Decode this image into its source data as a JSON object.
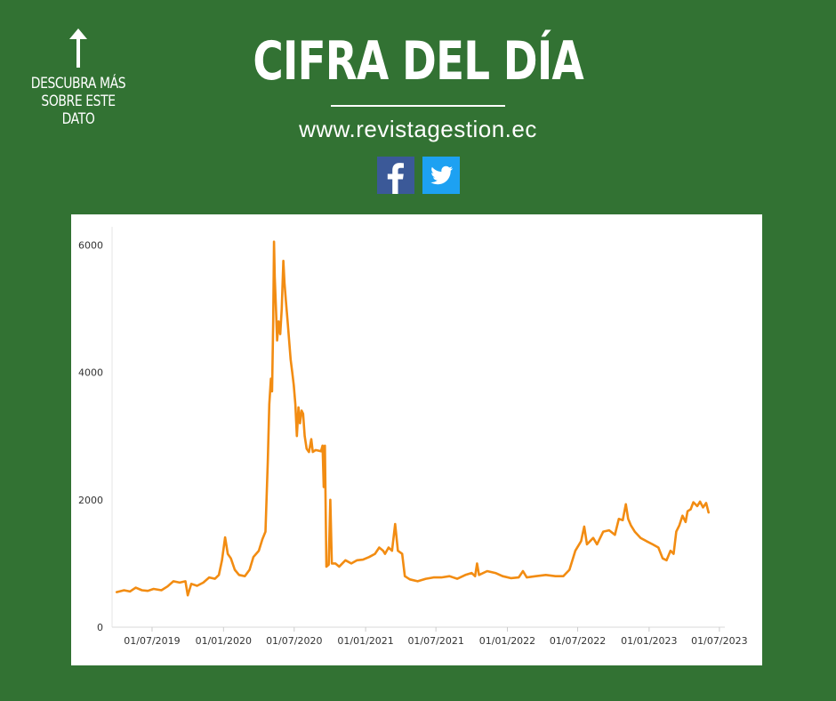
{
  "header": {
    "side_note": "DESCUBRA MÁS SOBRE ESTE DATO",
    "title": "CIFRA DEL DÍA",
    "url": "www.revistagestion.ec"
  },
  "icons": {
    "side_arrow": "arrow-up-icon",
    "facebook": "facebook-icon",
    "twitter": "twitter-icon"
  },
  "colors": {
    "background": "#327233",
    "line": "#F28C12",
    "facebook": "#3b5998",
    "twitter": "#1da1f2"
  },
  "chart_data": {
    "type": "line",
    "title": "",
    "xlabel": "",
    "ylabel": "",
    "ylim": [
      0,
      6200
    ],
    "xlim": [
      "2019-03-20",
      "2023-07-15"
    ],
    "yticks": [
      0,
      2000,
      4000,
      6000
    ],
    "xticks": [
      "01/07/2019",
      "01/01/2020",
      "01/07/2020",
      "01/01/2021",
      "01/07/2021",
      "01/01/2022",
      "01/07/2022",
      "01/01/2023",
      "01/07/2023"
    ],
    "grid": false,
    "legend": "none",
    "series": [
      {
        "points": [
          [
            "2019-04-01",
            550
          ],
          [
            "2019-04-20",
            580
          ],
          [
            "2019-05-05",
            560
          ],
          [
            "2019-05-20",
            620
          ],
          [
            "2019-06-05",
            580
          ],
          [
            "2019-06-20",
            570
          ],
          [
            "2019-07-05",
            600
          ],
          [
            "2019-07-25",
            580
          ],
          [
            "2019-08-10",
            640
          ],
          [
            "2019-08-25",
            720
          ],
          [
            "2019-09-10",
            700
          ],
          [
            "2019-09-25",
            720
          ],
          [
            "2019-10-01",
            500
          ],
          [
            "2019-10-10",
            680
          ],
          [
            "2019-10-25",
            650
          ],
          [
            "2019-11-10",
            700
          ],
          [
            "2019-11-25",
            780
          ],
          [
            "2019-12-10",
            760
          ],
          [
            "2019-12-20",
            820
          ],
          [
            "2019-12-28",
            1050
          ],
          [
            "2020-01-05",
            1410
          ],
          [
            "2020-01-12",
            1150
          ],
          [
            "2020-01-20",
            1080
          ],
          [
            "2020-01-30",
            900
          ],
          [
            "2020-02-10",
            820
          ],
          [
            "2020-02-25",
            800
          ],
          [
            "2020-03-08",
            900
          ],
          [
            "2020-03-18",
            1100
          ],
          [
            "2020-04-01",
            1200
          ],
          [
            "2020-04-10",
            1380
          ],
          [
            "2020-04-18",
            1500
          ],
          [
            "2020-04-24",
            2600
          ],
          [
            "2020-04-28",
            3500
          ],
          [
            "2020-05-02",
            3900
          ],
          [
            "2020-05-05",
            3700
          ],
          [
            "2020-05-08",
            4800
          ],
          [
            "2020-05-10",
            6050
          ],
          [
            "2020-05-12",
            5500
          ],
          [
            "2020-05-15",
            5000
          ],
          [
            "2020-05-18",
            4500
          ],
          [
            "2020-05-22",
            4800
          ],
          [
            "2020-05-26",
            4600
          ],
          [
            "2020-05-30",
            5000
          ],
          [
            "2020-06-03",
            5750
          ],
          [
            "2020-06-06",
            5400
          ],
          [
            "2020-06-10",
            5100
          ],
          [
            "2020-06-14",
            4800
          ],
          [
            "2020-06-18",
            4500
          ],
          [
            "2020-06-22",
            4200
          ],
          [
            "2020-06-26",
            4000
          ],
          [
            "2020-06-30",
            3800
          ],
          [
            "2020-07-04",
            3500
          ],
          [
            "2020-07-08",
            3000
          ],
          [
            "2020-07-12",
            3450
          ],
          [
            "2020-07-16",
            3200
          ],
          [
            "2020-07-20",
            3400
          ],
          [
            "2020-07-24",
            3350
          ],
          [
            "2020-07-28",
            3000
          ],
          [
            "2020-08-02",
            2800
          ],
          [
            "2020-08-08",
            2750
          ],
          [
            "2020-08-14",
            2950
          ],
          [
            "2020-08-18",
            2750
          ],
          [
            "2020-08-25",
            2780
          ],
          [
            "2020-09-02",
            2770
          ],
          [
            "2020-09-08",
            2760
          ],
          [
            "2020-09-12",
            2850
          ],
          [
            "2020-09-15",
            2200
          ],
          [
            "2020-09-18",
            2850
          ],
          [
            "2020-09-22",
            950
          ],
          [
            "2020-09-28",
            980
          ],
          [
            "2020-10-02",
            2000
          ],
          [
            "2020-10-06",
            1000
          ],
          [
            "2020-10-15",
            1000
          ],
          [
            "2020-10-25",
            950
          ],
          [
            "2020-11-10",
            1050
          ],
          [
            "2020-11-25",
            1000
          ],
          [
            "2020-12-10",
            1050
          ],
          [
            "2020-12-25",
            1060
          ],
          [
            "2021-01-10",
            1100
          ],
          [
            "2021-01-25",
            1150
          ],
          [
            "2021-02-05",
            1250
          ],
          [
            "2021-02-15",
            1200
          ],
          [
            "2021-02-20",
            1150
          ],
          [
            "2021-03-01",
            1250
          ],
          [
            "2021-03-10",
            1200
          ],
          [
            "2021-03-18",
            1620
          ],
          [
            "2021-03-25",
            1200
          ],
          [
            "2021-04-05",
            1150
          ],
          [
            "2021-04-12",
            800
          ],
          [
            "2021-04-25",
            750
          ],
          [
            "2021-05-15",
            720
          ],
          [
            "2021-06-05",
            760
          ],
          [
            "2021-06-25",
            780
          ],
          [
            "2021-07-15",
            780
          ],
          [
            "2021-08-05",
            800
          ],
          [
            "2021-08-25",
            760
          ],
          [
            "2021-09-15",
            820
          ],
          [
            "2021-10-01",
            850
          ],
          [
            "2021-10-10",
            800
          ],
          [
            "2021-10-15",
            1000
          ],
          [
            "2021-10-20",
            820
          ],
          [
            "2021-11-10",
            880
          ],
          [
            "2021-12-01",
            850
          ],
          [
            "2021-12-20",
            800
          ],
          [
            "2022-01-10",
            770
          ],
          [
            "2022-01-30",
            780
          ],
          [
            "2022-02-10",
            880
          ],
          [
            "2022-02-20",
            780
          ],
          [
            "2022-03-15",
            800
          ],
          [
            "2022-04-10",
            820
          ],
          [
            "2022-05-05",
            800
          ],
          [
            "2022-05-25",
            800
          ],
          [
            "2022-06-10",
            900
          ],
          [
            "2022-06-25",
            1200
          ],
          [
            "2022-07-10",
            1350
          ],
          [
            "2022-07-18",
            1580
          ],
          [
            "2022-07-25",
            1300
          ],
          [
            "2022-08-10",
            1400
          ],
          [
            "2022-08-20",
            1300
          ],
          [
            "2022-09-05",
            1500
          ],
          [
            "2022-09-20",
            1520
          ],
          [
            "2022-10-05",
            1450
          ],
          [
            "2022-10-15",
            1700
          ],
          [
            "2022-10-25",
            1680
          ],
          [
            "2022-11-02",
            1930
          ],
          [
            "2022-11-08",
            1700
          ],
          [
            "2022-11-15",
            1600
          ],
          [
            "2022-11-25",
            1500
          ],
          [
            "2022-12-10",
            1400
          ],
          [
            "2022-12-25",
            1350
          ],
          [
            "2023-01-10",
            1300
          ],
          [
            "2023-01-25",
            1250
          ],
          [
            "2023-02-05",
            1080
          ],
          [
            "2023-02-15",
            1050
          ],
          [
            "2023-02-25",
            1200
          ],
          [
            "2023-03-05",
            1150
          ],
          [
            "2023-03-12",
            1500
          ],
          [
            "2023-03-20",
            1600
          ],
          [
            "2023-03-28",
            1750
          ],
          [
            "2023-04-05",
            1650
          ],
          [
            "2023-04-10",
            1820
          ],
          [
            "2023-04-18",
            1850
          ],
          [
            "2023-04-25",
            1960
          ],
          [
            "2023-05-05",
            1900
          ],
          [
            "2023-05-12",
            1970
          ],
          [
            "2023-05-20",
            1880
          ],
          [
            "2023-05-28",
            1950
          ],
          [
            "2023-06-03",
            1800
          ]
        ]
      }
    ]
  }
}
